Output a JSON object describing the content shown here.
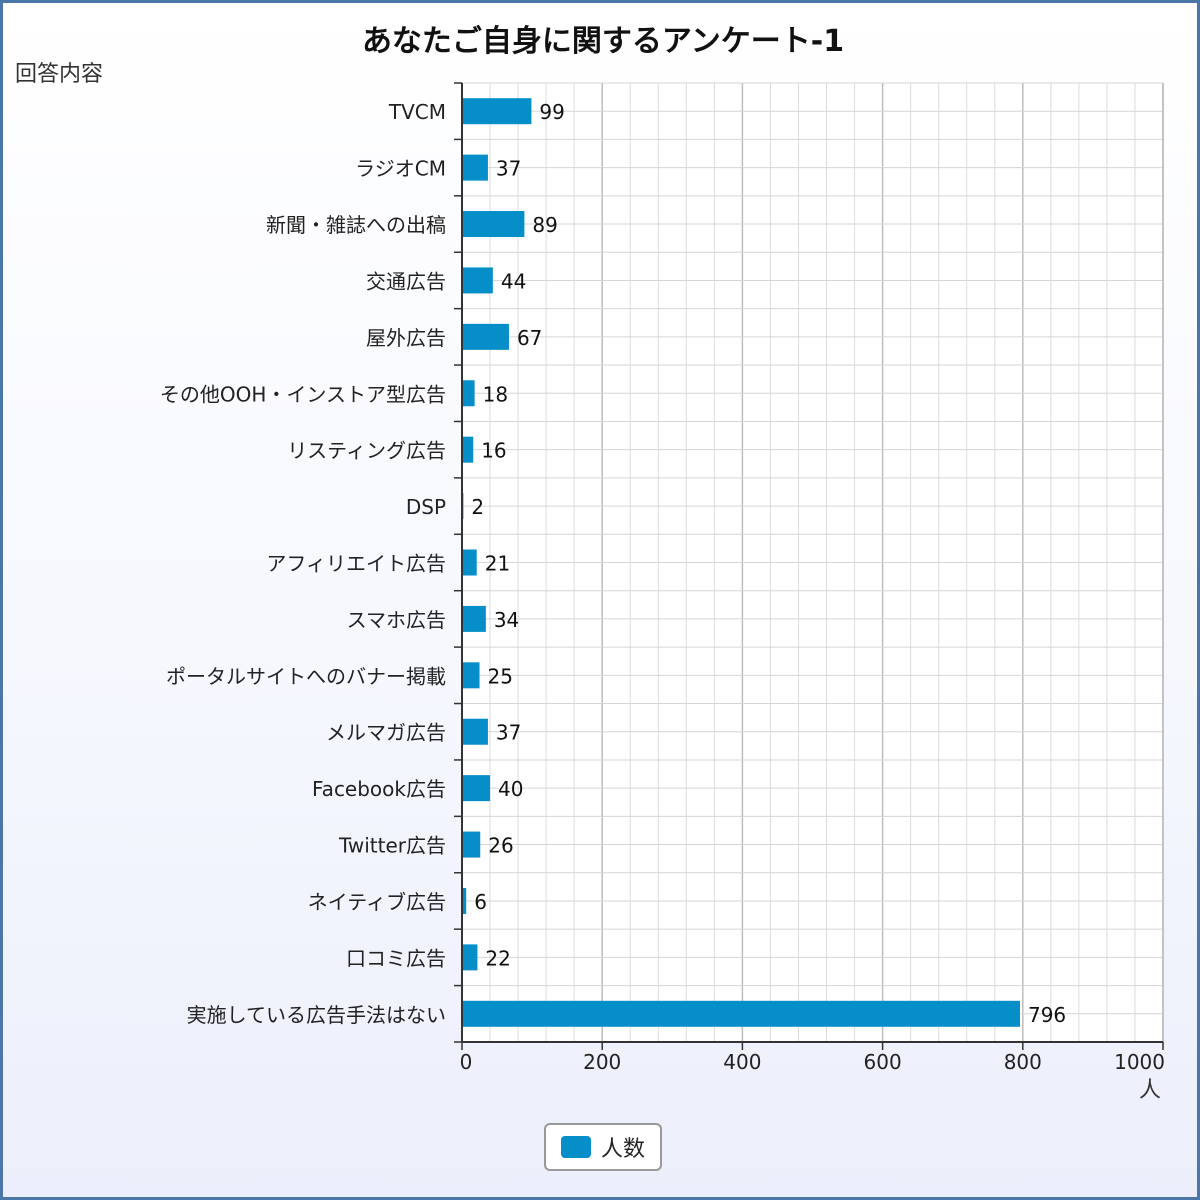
{
  "chart_data": {
    "type": "bar",
    "orientation": "horizontal",
    "title": "あなたご自身に関するアンケート-1",
    "ylabel": "回答内容",
    "xlabel": "人",
    "xlim": [
      0,
      1000
    ],
    "xticks": [
      0,
      200,
      400,
      600,
      800,
      1000
    ],
    "grid": true,
    "legend_position": "bottom",
    "colors": {
      "bar": "#068ec8",
      "grid": "#d0d0d0",
      "axis": "#333333"
    },
    "categories": [
      "TVCM",
      "ラジオCM",
      "新聞・雑誌への出稿",
      "交通広告",
      "屋外広告",
      "その他OOH・インストア型広告",
      "リスティング広告",
      "DSP",
      "アフィリエイト広告",
      "スマホ広告",
      "ポータルサイトへのバナー掲載",
      "メルマガ広告",
      "Facebook広告",
      "Twitter広告",
      "ネイティブ広告",
      "口コミ広告",
      "実施している広告手法はない"
    ],
    "series": [
      {
        "name": "人数",
        "values": [
          99,
          37,
          89,
          44,
          67,
          18,
          16,
          2,
          21,
          34,
          25,
          37,
          40,
          26,
          6,
          22,
          796
        ]
      }
    ]
  }
}
